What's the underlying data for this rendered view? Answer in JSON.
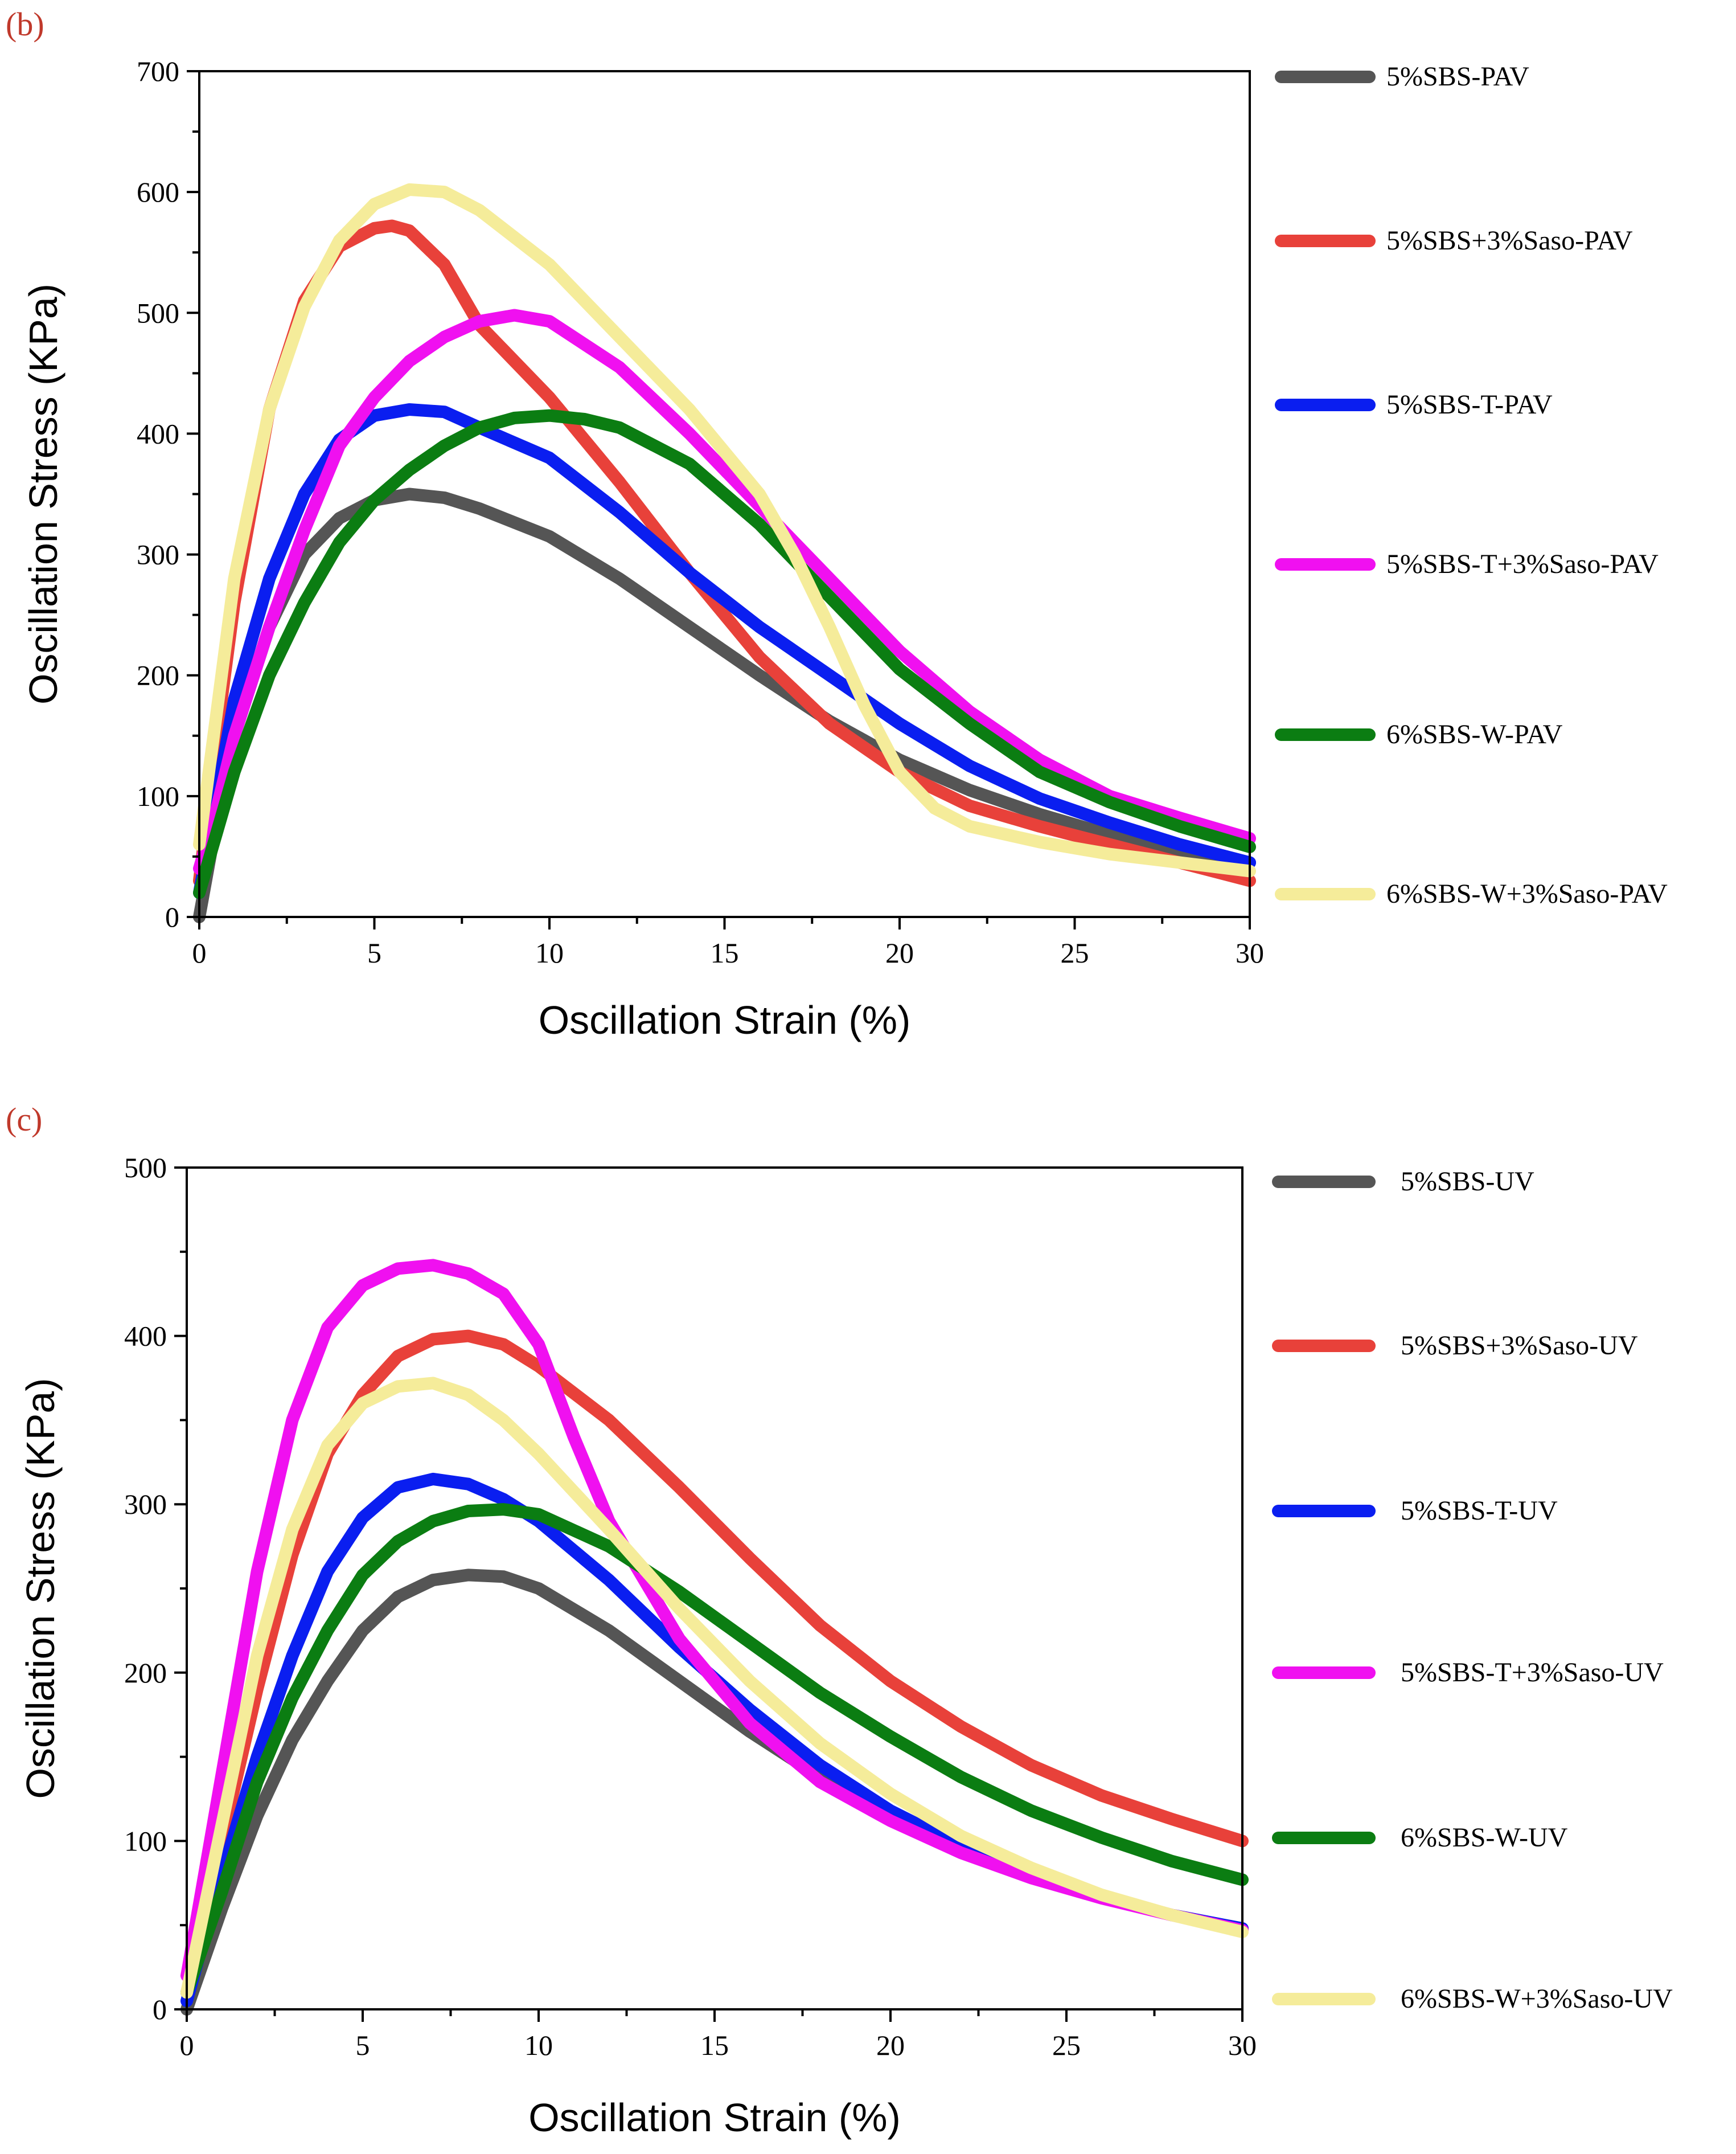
{
  "chart_data": [
    {
      "panel_label": "(b)",
      "type": "line",
      "xlabel": "Oscillation Strain (%)",
      "ylabel": "Oscillation Stress (KPa)",
      "xlim": [
        0,
        30
      ],
      "ylim": [
        0,
        700
      ],
      "x_ticks": [
        0,
        5,
        10,
        15,
        20,
        25,
        30
      ],
      "y_ticks": [
        0,
        100,
        200,
        300,
        400,
        500,
        600,
        700
      ],
      "legend_position": "right",
      "series": [
        {
          "name": "5%SBS-PAV",
          "color": "#555555",
          "points": [
            [
              0,
              0
            ],
            [
              0.5,
              80
            ],
            [
              1,
              150
            ],
            [
              2,
              240
            ],
            [
              3,
              300
            ],
            [
              4,
              330
            ],
            [
              5,
              345
            ],
            [
              6,
              350
            ],
            [
              7,
              347
            ],
            [
              8,
              338
            ],
            [
              10,
              315
            ],
            [
              12,
              280
            ],
            [
              14,
              240
            ],
            [
              16,
              200
            ],
            [
              18,
              162
            ],
            [
              20,
              130
            ],
            [
              22,
              105
            ],
            [
              24,
              85
            ],
            [
              26,
              68
            ],
            [
              28,
              55
            ],
            [
              30,
              45
            ]
          ]
        },
        {
          "name": "5%SBS+3%Saso-PAV",
          "color": "#e8413a",
          "points": [
            [
              0,
              30
            ],
            [
              0.5,
              150
            ],
            [
              1,
              260
            ],
            [
              2,
              420
            ],
            [
              3,
              510
            ],
            [
              4,
              555
            ],
            [
              5,
              570
            ],
            [
              5.5,
              572
            ],
            [
              6,
              568
            ],
            [
              7,
              540
            ],
            [
              8,
              490
            ],
            [
              10,
              430
            ],
            [
              12,
              360
            ],
            [
              14,
              285
            ],
            [
              16,
              215
            ],
            [
              18,
              160
            ],
            [
              20,
              120
            ],
            [
              22,
              92
            ],
            [
              24,
              75
            ],
            [
              26,
              60
            ],
            [
              28,
              45
            ],
            [
              30,
              30
            ]
          ]
        },
        {
          "name": "5%SBS-T-PAV",
          "color": "#0a1ef0",
          "points": [
            [
              0,
              20
            ],
            [
              0.5,
              100
            ],
            [
              1,
              180
            ],
            [
              2,
              280
            ],
            [
              3,
              350
            ],
            [
              4,
              395
            ],
            [
              5,
              415
            ],
            [
              6,
              420
            ],
            [
              7,
              418
            ],
            [
              8,
              405
            ],
            [
              10,
              380
            ],
            [
              12,
              335
            ],
            [
              14,
              285
            ],
            [
              16,
              240
            ],
            [
              18,
              200
            ],
            [
              20,
              160
            ],
            [
              22,
              125
            ],
            [
              24,
              98
            ],
            [
              26,
              78
            ],
            [
              28,
              60
            ],
            [
              30,
              45
            ]
          ]
        },
        {
          "name": "5%SBS-T+3%Saso-PAV",
          "color": "#f010f0",
          "points": [
            [
              0,
              40
            ],
            [
              0.5,
              90
            ],
            [
              1,
              150
            ],
            [
              2,
              240
            ],
            [
              3,
              320
            ],
            [
              4,
              390
            ],
            [
              5,
              430
            ],
            [
              6,
              460
            ],
            [
              7,
              480
            ],
            [
              8,
              493
            ],
            [
              9,
              498
            ],
            [
              10,
              493
            ],
            [
              12,
              455
            ],
            [
              14,
              400
            ],
            [
              16,
              340
            ],
            [
              18,
              280
            ],
            [
              20,
              220
            ],
            [
              22,
              170
            ],
            [
              24,
              130
            ],
            [
              26,
              100
            ],
            [
              28,
              82
            ],
            [
              30,
              65
            ]
          ]
        },
        {
          "name": "6%SBS-W-PAV",
          "color": "#0b7d12",
          "points": [
            [
              0,
              20
            ],
            [
              0.5,
              70
            ],
            [
              1,
              120
            ],
            [
              2,
              200
            ],
            [
              3,
              260
            ],
            [
              4,
              310
            ],
            [
              5,
              345
            ],
            [
              6,
              370
            ],
            [
              7,
              390
            ],
            [
              8,
              405
            ],
            [
              9,
              413
            ],
            [
              10,
              415
            ],
            [
              11,
              412
            ],
            [
              12,
              405
            ],
            [
              14,
              375
            ],
            [
              16,
              325
            ],
            [
              18,
              265
            ],
            [
              20,
              205
            ],
            [
              22,
              160
            ],
            [
              24,
              120
            ],
            [
              26,
              95
            ],
            [
              28,
              75
            ],
            [
              30,
              58
            ]
          ]
        },
        {
          "name": "6%SBS-W+3%Saso-PAV",
          "color": "#f5ec9a",
          "points": [
            [
              0,
              60
            ],
            [
              0.5,
              170
            ],
            [
              1,
              280
            ],
            [
              2,
              420
            ],
            [
              3,
              505
            ],
            [
              4,
              560
            ],
            [
              5,
              590
            ],
            [
              6,
              602
            ],
            [
              7,
              600
            ],
            [
              8,
              585
            ],
            [
              10,
              540
            ],
            [
              12,
              480
            ],
            [
              14,
              420
            ],
            [
              16,
              350
            ],
            [
              17,
              300
            ],
            [
              18,
              240
            ],
            [
              19,
              175
            ],
            [
              20,
              120
            ],
            [
              21,
              90
            ],
            [
              22,
              75
            ],
            [
              24,
              62
            ],
            [
              26,
              52
            ],
            [
              28,
              45
            ],
            [
              30,
              38
            ]
          ]
        }
      ]
    },
    {
      "panel_label": "(c)",
      "type": "line",
      "xlabel": "Oscillation Strain (%)",
      "ylabel": "Oscillation Stress (KPa)",
      "xlim": [
        0,
        30
      ],
      "ylim": [
        0,
        500
      ],
      "x_ticks": [
        0,
        5,
        10,
        15,
        20,
        25,
        30
      ],
      "y_ticks": [
        0,
        100,
        200,
        300,
        400,
        500
      ],
      "legend_position": "right",
      "series": [
        {
          "name": "5%SBS-UV",
          "color": "#555555",
          "points": [
            [
              0,
              0
            ],
            [
              1,
              60
            ],
            [
              2,
              115
            ],
            [
              3,
              160
            ],
            [
              4,
              195
            ],
            [
              5,
              225
            ],
            [
              6,
              245
            ],
            [
              7,
              255
            ],
            [
              8,
              258
            ],
            [
              9,
              257
            ],
            [
              10,
              250
            ],
            [
              12,
              225
            ],
            [
              14,
              195
            ],
            [
              16,
              165
            ],
            [
              18,
              138
            ],
            [
              20,
              115
            ],
            [
              22,
              95
            ],
            [
              24,
              80
            ],
            [
              26,
              67
            ],
            [
              28,
              56
            ],
            [
              30,
              48
            ]
          ]
        },
        {
          "name": "5%SBS+3%Saso-UV",
          "color": "#e8413a",
          "points": [
            [
              0,
              10
            ],
            [
              1,
              100
            ],
            [
              2,
              190
            ],
            [
              3,
              270
            ],
            [
              4,
              330
            ],
            [
              5,
              365
            ],
            [
              6,
              388
            ],
            [
              7,
              398
            ],
            [
              8,
              400
            ],
            [
              9,
              395
            ],
            [
              10,
              382
            ],
            [
              12,
              350
            ],
            [
              14,
              310
            ],
            [
              16,
              268
            ],
            [
              18,
              228
            ],
            [
              20,
              195
            ],
            [
              22,
              168
            ],
            [
              24,
              145
            ],
            [
              26,
              127
            ],
            [
              28,
              113
            ],
            [
              30,
              100
            ]
          ]
        },
        {
          "name": "5%SBS-T-UV",
          "color": "#0a1ef0",
          "points": [
            [
              0,
              5
            ],
            [
              1,
              80
            ],
            [
              2,
              150
            ],
            [
              3,
              210
            ],
            [
              4,
              260
            ],
            [
              5,
              292
            ],
            [
              6,
              310
            ],
            [
              7,
              315
            ],
            [
              8,
              312
            ],
            [
              9,
              303
            ],
            [
              10,
              290
            ],
            [
              12,
              255
            ],
            [
              14,
              215
            ],
            [
              16,
              178
            ],
            [
              18,
              145
            ],
            [
              20,
              118
            ],
            [
              22,
              97
            ],
            [
              24,
              80
            ],
            [
              26,
              67
            ],
            [
              28,
              56
            ],
            [
              30,
              48
            ]
          ]
        },
        {
          "name": "5%SBS-T+3%Saso-UV",
          "color": "#f010f0",
          "points": [
            [
              0,
              20
            ],
            [
              1,
              140
            ],
            [
              2,
              260
            ],
            [
              3,
              350
            ],
            [
              4,
              405
            ],
            [
              5,
              430
            ],
            [
              6,
              440
            ],
            [
              7,
              442
            ],
            [
              8,
              437
            ],
            [
              9,
              425
            ],
            [
              10,
              395
            ],
            [
              11,
              340
            ],
            [
              12,
              290
            ],
            [
              14,
              220
            ],
            [
              16,
              170
            ],
            [
              18,
              135
            ],
            [
              20,
              112
            ],
            [
              22,
              93
            ],
            [
              24,
              78
            ],
            [
              26,
              66
            ],
            [
              28,
              56
            ],
            [
              30,
              47
            ]
          ]
        },
        {
          "name": "6%SBS-W-UV",
          "color": "#0b7d12",
          "points": [
            [
              0,
              10
            ],
            [
              1,
              70
            ],
            [
              2,
              135
            ],
            [
              3,
              185
            ],
            [
              4,
              225
            ],
            [
              5,
              258
            ],
            [
              6,
              278
            ],
            [
              7,
              290
            ],
            [
              8,
              296
            ],
            [
              9,
              297
            ],
            [
              10,
              294
            ],
            [
              12,
              275
            ],
            [
              14,
              248
            ],
            [
              16,
              218
            ],
            [
              18,
              188
            ],
            [
              20,
              162
            ],
            [
              22,
              138
            ],
            [
              24,
              118
            ],
            [
              26,
              102
            ],
            [
              28,
              88
            ],
            [
              30,
              77
            ]
          ]
        },
        {
          "name": "6%SBS-W+3%Saso-UV",
          "color": "#f5ec9a",
          "points": [
            [
              0,
              10
            ],
            [
              1,
              110
            ],
            [
              2,
              210
            ],
            [
              3,
              285
            ],
            [
              4,
              335
            ],
            [
              5,
              360
            ],
            [
              6,
              370
            ],
            [
              7,
              372
            ],
            [
              8,
              365
            ],
            [
              9,
              350
            ],
            [
              10,
              330
            ],
            [
              12,
              285
            ],
            [
              14,
              238
            ],
            [
              16,
              195
            ],
            [
              18,
              158
            ],
            [
              20,
              128
            ],
            [
              22,
              103
            ],
            [
              24,
              84
            ],
            [
              26,
              68
            ],
            [
              28,
              56
            ],
            [
              30,
              46
            ]
          ]
        }
      ]
    }
  ]
}
